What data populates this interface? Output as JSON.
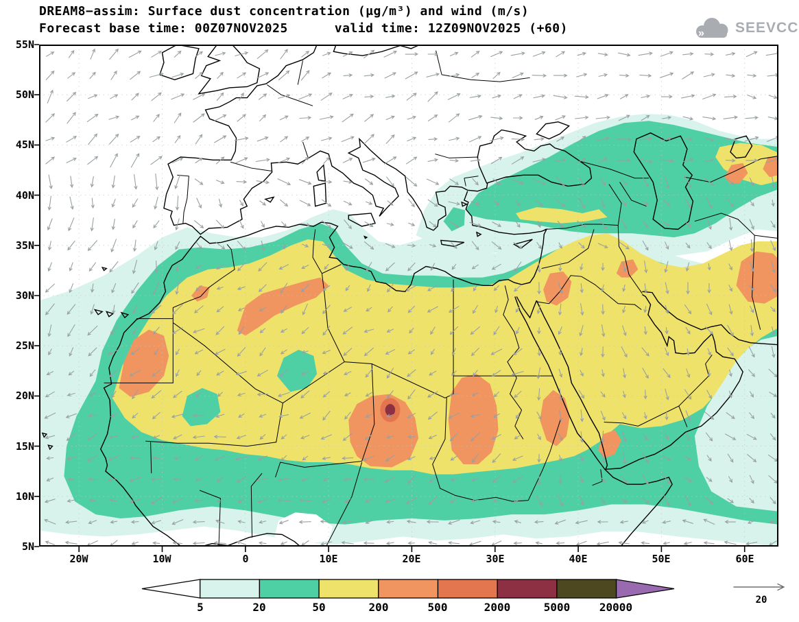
{
  "title_line1": "DREAM8−assim: Surface dust concentration (μg/m³) and wind (m/s)",
  "title_line2": "Forecast base time: 00Z07NOV2025      valid time: 12Z09NOV2025 (+60)",
  "logo_text": "SEEVCCC",
  "axes": {
    "lat_labels": [
      "55N",
      "50N",
      "45N",
      "40N",
      "35N",
      "30N",
      "25N",
      "20N",
      "15N",
      "10N",
      "5N"
    ],
    "lon_labels": [
      "20W",
      "10W",
      "0",
      "10E",
      "20E",
      "30E",
      "40E",
      "50E",
      "60E"
    ]
  },
  "colorbar": {
    "labels": [
      "5",
      "20",
      "50",
      "200",
      "500",
      "2000",
      "5000",
      "20000"
    ],
    "colors": [
      "#ffffff",
      "#d8f3ec",
      "#4ed0a4",
      "#efe26b",
      "#f0955f",
      "#e4764f",
      "#8e3043",
      "#4d481f",
      "#9a6ab0"
    ]
  },
  "wind_ref_label": "20",
  "palette": {
    "cyan": "#d8f3ec",
    "green": "#4ed0a4",
    "yellow": "#efe26b",
    "orange": "#f0955f",
    "orange2": "#e4764f",
    "maroon": "#8e3043",
    "darkolive": "#4d481f",
    "purple": "#9a6ab0",
    "coast": "#000000",
    "arrow": "#98a0a4",
    "logo": "#a9adb2"
  },
  "chart_data": {
    "type": "heatmap",
    "title": "DREAM8−assim: Surface dust concentration (μg/m³) and wind (m/s)",
    "model": "DREAM8−assim",
    "variable": "Surface dust concentration (μg/m³)",
    "overlay": "wind (m/s), gray vectors",
    "forecast_base_time": "00Z07NOV2025",
    "valid_time": "12Z09NOV2025",
    "forecast_hour": "+60",
    "lon_range": [
      -25,
      64
    ],
    "lat_range": [
      5,
      55
    ],
    "lon_ticks": [
      "20W",
      "10W",
      "0",
      "10E",
      "20E",
      "30E",
      "40E",
      "50E",
      "60E"
    ],
    "lat_ticks": [
      "5N",
      "10N",
      "15N",
      "20N",
      "25N",
      "30N",
      "35N",
      "40N",
      "45N",
      "50N",
      "55N"
    ],
    "contour_levels_ugm3": [
      5,
      20,
      50,
      200,
      500,
      2000,
      5000,
      20000
    ],
    "level_colors": [
      "#ffffff",
      "#d8f3ec",
      "#4ed0a4",
      "#efe26b",
      "#f0955f",
      "#e4764f",
      "#8e3043",
      "#4d481f",
      "#9a6ab0"
    ],
    "wind_reference_ms": 20,
    "grid": "dotted, every 10 deg lon / 5 deg lat",
    "features": [
      {
        "region": "Sahara-Sahel belt from Mauritania across Libya/Chad/Sudan into central Arabia",
        "level_ugm3": "50-200"
      },
      {
        "region": "Western Sahara / Mauritania coast",
        "level_ugm3": "200-500"
      },
      {
        "region": "Central Algeria toward Tunisia",
        "level_ugm3": "200-500"
      },
      {
        "region": "Chad / Bodele depression (~13-21E, 13-20N)",
        "level_ugm3": "200-500 with small core 2000-5000 near 17.5E 18.5N"
      },
      {
        "region": "NW Sudan / S Egypt (~24-31E, 13-22N)",
        "level_ugm3": "200-500"
      },
      {
        "region": "Southern Red Sea coast and Yemen highlands",
        "level_ugm3": "200-500"
      },
      {
        "region": "Jordan / NW Saudi Arabia",
        "level_ugm3": "200-500"
      },
      {
        "region": "E Iran / Afghanistan at right edge (29-35N)",
        "level_ugm3": "200-500"
      },
      {
        "region": "Anatolia, Caucasus, Caspian and Central Asia band",
        "level_ugm3": "5-50, locally 50-500"
      },
      {
        "region": "Subtropical Atlantic off West Africa",
        "level_ugm3": "5-50"
      },
      {
        "region": "Europe north of ~43N and NE Atlantic",
        "level_ugm3": "below 5 (clear)"
      }
    ],
    "wind_note": "NE trade winds (arrows toward WSW) over Sahara/Sahel; southwesterlies (arrows toward ENE) over NE Atlantic and Europe; arrows toward S-SW over subtropical Atlantic; northerlies along Red Sea and Arabia"
  }
}
